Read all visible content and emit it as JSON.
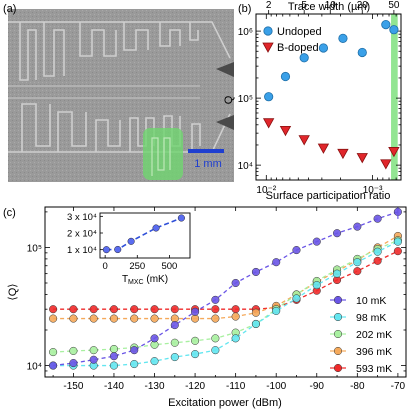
{
  "panel_labels": {
    "a": "(a)",
    "b": "(b)",
    "c": "(c)"
  },
  "micrograph": {
    "scale_bar_label": "1 mm",
    "highlight_color": "#6fd66f",
    "scale_bar_color": "#1f3fd0"
  },
  "colors": {
    "undoped": "#3aa0e8",
    "bdoped": "#e0262b",
    "band": "#7fe07f",
    "c_10mK": "#6a55e6",
    "c_98mK": "#63e6f0",
    "c_202mK": "#a8f0a0",
    "c_396mK": "#f5a95a",
    "c_593mK": "#ef2a2a"
  },
  "chart_data": [
    {
      "type": "scatter",
      "panel": "b",
      "xlabel": "Surface participation ratio",
      "ylabel": "Q",
      "top_xlabel": "Trace width (µm)",
      "x_scale": "log",
      "y_scale": "log",
      "xlim": [
        0.0125,
        0.00054
      ],
      "ylim": [
        6000,
        1800000
      ],
      "x_tick_labels": [
        "10⁻²",
        "10⁻³"
      ],
      "y_tick_labels": [
        "10⁴",
        "10⁵",
        "10⁶"
      ],
      "top_tick_labels": [
        "2",
        "5",
        "10",
        "20",
        "50"
      ],
      "legend": "top-left",
      "series": [
        {
          "name": "Undoped",
          "marker": "circle",
          "x": [
            0.0095,
            0.0066,
            0.0044,
            0.0029,
            0.0019,
            0.00125,
            0.00075,
            0.00063
          ],
          "y": [
            105000,
            210000,
            400000,
            560000,
            780000,
            480000,
            1250000,
            1050000
          ]
        },
        {
          "name": "B-doped",
          "marker": "triangle-down",
          "x": [
            0.0095,
            0.0066,
            0.0044,
            0.0029,
            0.0019,
            0.00125,
            0.00075,
            0.00063
          ],
          "y": [
            43000,
            33000,
            24000,
            18000,
            15000,
            13000,
            10500,
            16000
          ]
        }
      ]
    },
    {
      "type": "line",
      "panel": "c",
      "xlabel": "Excitation power (dBm)",
      "ylabel": "⟨Q⟩",
      "y_scale": "log",
      "xlim": [
        -157,
        -68
      ],
      "ylim": [
        8000,
        220000
      ],
      "x_ticks": [
        -150,
        -140,
        -130,
        -120,
        -110,
        -100,
        -90,
        -80,
        -70
      ],
      "y_tick_labels": [
        "10⁴",
        "10⁵"
      ],
      "legend": "bottom-right",
      "x": [
        -155,
        -150,
        -145,
        -140,
        -135,
        -130,
        -125,
        -120,
        -115,
        -110,
        -105,
        -100,
        -95,
        -90,
        -85,
        -80,
        -75,
        -70
      ],
      "series": [
        {
          "name": "10 mK",
          "marker": "circle",
          "y": [
            10000,
            10500,
            11200,
            12000,
            13500,
            17000,
            22000,
            28500,
            36000,
            50000,
            62000,
            75000,
            95000,
            112000,
            132000,
            150000,
            175000,
            200000
          ]
        },
        {
          "name": "98 mK",
          "marker": "circle",
          "y": [
            10000,
            10000,
            10000,
            10000,
            10300,
            10900,
            11800,
            12500,
            13500,
            17000,
            22500,
            29000,
            37000,
            48000,
            60000,
            75000,
            92000,
            112000
          ]
        },
        {
          "name": "202 mK",
          "marker": "circle",
          "y": [
            13000,
            13300,
            13500,
            13800,
            14200,
            15000,
            15600,
            16200,
            17000,
            19000,
            22500,
            30000,
            40000,
            52000,
            65000,
            80000,
            97000,
            115000
          ]
        },
        {
          "name": "396 mK",
          "marker": "circle",
          "y": [
            25000,
            25000,
            25000,
            25000,
            25000,
            25000,
            25000,
            25000,
            25000,
            26000,
            28000,
            32000,
            40000,
            51000,
            63000,
            78000,
            100000,
            125000
          ]
        },
        {
          "name": "593 mK",
          "marker": "circle",
          "y": [
            30000,
            30000,
            30000,
            30000,
            30000,
            30000,
            30000,
            30000,
            30000,
            30000,
            30000,
            31000,
            36000,
            43000,
            53000,
            63000,
            77000,
            93000
          ]
        }
      ]
    },
    {
      "type": "line",
      "panel": "c-inset",
      "xlabel": "T_MXC (mK)",
      "xlim": [
        -40,
        660
      ],
      "ylim": [
        5000,
        32000
      ],
      "x_ticks": [
        0,
        250,
        500
      ],
      "y_tick_labels": [
        "1 x 10⁴",
        "2 x 10⁴",
        "3 x 10⁴"
      ],
      "y_ticks": [
        10000,
        20000,
        30000
      ],
      "x": [
        10,
        98,
        202,
        396,
        593
      ],
      "y": [
        10000,
        10100,
        15000,
        23000,
        29000
      ]
    }
  ]
}
